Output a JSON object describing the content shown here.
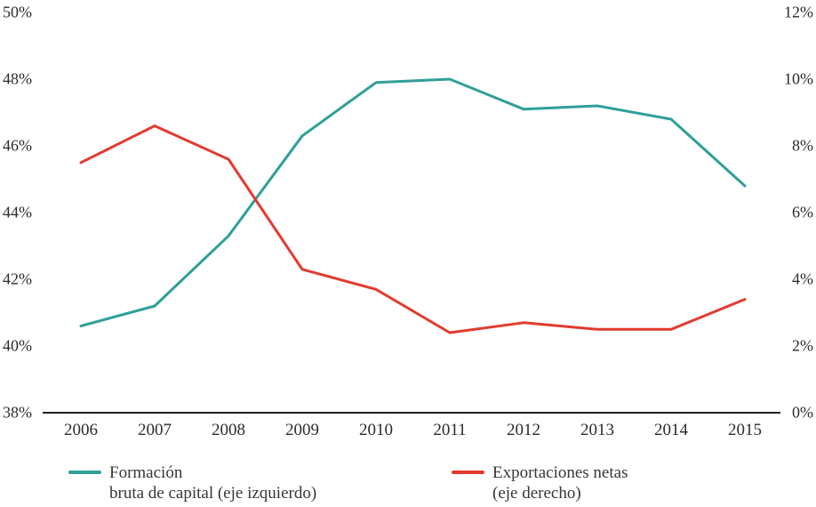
{
  "chart_data": {
    "type": "line",
    "title": "",
    "x": [
      "2006",
      "2007",
      "2008",
      "2009",
      "2010",
      "2011",
      "2012",
      "2013",
      "2014",
      "2015"
    ],
    "series": [
      {
        "name": "Formación bruta de capital (eje izquierdo)",
        "axis": "left",
        "color": "#2FA098",
        "values": [
          40.6,
          41.2,
          43.3,
          46.3,
          47.9,
          48.0,
          47.1,
          47.2,
          46.8,
          44.8
        ]
      },
      {
        "name": "Exportaciones netas (eje derecho)",
        "axis": "right",
        "color": "#E23B2E",
        "values": [
          7.5,
          8.6,
          7.6,
          4.3,
          3.7,
          2.4,
          2.7,
          2.5,
          2.5,
          3.4
        ]
      }
    ],
    "left_axis": {
      "min": 38,
      "max": 50,
      "step": 2,
      "tick_labels": [
        "38%",
        "40%",
        "42%",
        "44%",
        "46%",
        "48%",
        "50%"
      ]
    },
    "right_axis": {
      "min": 0,
      "max": 12,
      "step": 2,
      "tick_labels": [
        "0%",
        "2%",
        "4%",
        "6%",
        "8%",
        "10%",
        "12%"
      ]
    },
    "grid": false,
    "legend_position": "bottom"
  },
  "legend": {
    "items": [
      {
        "line1": "Formación",
        "line2": "bruta de capital (eje izquierdo)",
        "color": "#2FA098"
      },
      {
        "line1": "Exportaciones netas",
        "line2": "(eje derecho)",
        "color": "#E23B2E"
      }
    ]
  },
  "colors": {
    "teal": "#2FA098",
    "red": "#E23B2E",
    "axis": "#231f20",
    "text": "#2e2b28"
  }
}
